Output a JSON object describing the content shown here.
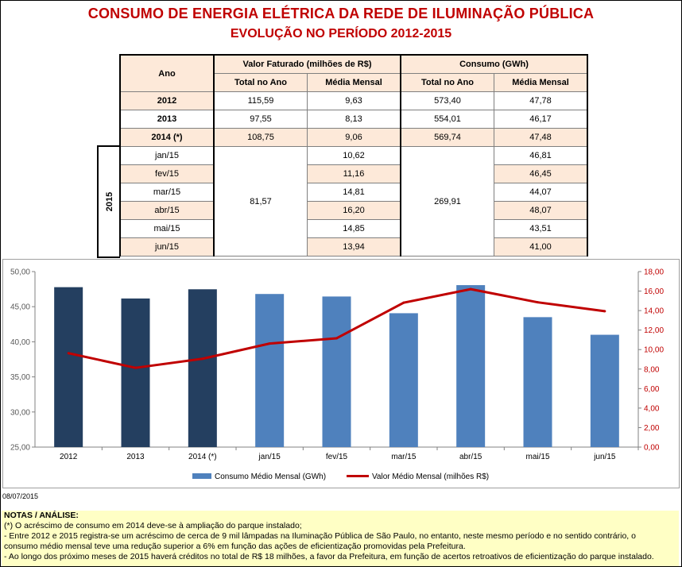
{
  "title": "CONSUMO DE ENERGIA ELÉTRICA DA REDE DE ILUMINAÇÃO PÚBLICA",
  "subtitle": "EVOLUÇÃO NO PERÍODO 2012-2015",
  "table": {
    "col_ano": "Ano",
    "group_valor": "Valor Faturado (milhões de R$)",
    "group_consumo": "Consumo (GWh)",
    "sub_total": "Total no Ano",
    "sub_media": "Média Mensal",
    "side_label": "2015",
    "years": [
      {
        "label": "2012",
        "valor_total": "115,59",
        "valor_media": "9,63",
        "cons_total": "573,40",
        "cons_media": "47,78"
      },
      {
        "label": "2013",
        "valor_total": "97,55",
        "valor_media": "8,13",
        "cons_total": "554,01",
        "cons_media": "46,17"
      },
      {
        "label": "2014 (*)",
        "valor_total": "108,75",
        "valor_media": "9,06",
        "cons_total": "569,74",
        "cons_media": "47,48"
      }
    ],
    "months_valor_total": "81,57",
    "months_cons_total": "269,91",
    "months": [
      {
        "label": "jan/15",
        "valor_media": "10,62",
        "cons_media": "46,81"
      },
      {
        "label": "fev/15",
        "valor_media": "11,16",
        "cons_media": "46,45"
      },
      {
        "label": "mar/15",
        "valor_media": "14,81",
        "cons_media": "44,07"
      },
      {
        "label": "abr/15",
        "valor_media": "16,20",
        "cons_media": "48,07"
      },
      {
        "label": "mai/15",
        "valor_media": "14,85",
        "cons_media": "43,51"
      },
      {
        "label": "jun/15",
        "valor_media": "13,94",
        "cons_media": "41,00"
      }
    ]
  },
  "chart_data": {
    "type": "bar",
    "categories": [
      "2012",
      "2013",
      "2014 (*)",
      "jan/15",
      "fev/15",
      "mar/15",
      "abr/15",
      "mai/15",
      "jun/15"
    ],
    "series": [
      {
        "name": "Consumo Médio Mensal (GWh)",
        "type": "bar",
        "axis": "left",
        "values": [
          47.78,
          46.17,
          47.48,
          46.81,
          46.45,
          44.07,
          48.07,
          43.51,
          41.0
        ],
        "colors": [
          "#243f60",
          "#243f60",
          "#243f60",
          "#4f81bd",
          "#4f81bd",
          "#4f81bd",
          "#4f81bd",
          "#4f81bd",
          "#4f81bd"
        ]
      },
      {
        "name": "Valor Médio Mensal (milhões R$)",
        "type": "line",
        "axis": "right",
        "values": [
          9.63,
          8.13,
          9.06,
          10.62,
          11.16,
          14.81,
          16.2,
          14.85,
          13.94
        ],
        "color": "#c00000"
      }
    ],
    "ylim_left": [
      25,
      50
    ],
    "left_ticks": [
      "25,00",
      "30,00",
      "35,00",
      "40,00",
      "45,00",
      "50,00"
    ],
    "ylim_right": [
      0,
      18
    ],
    "right_ticks": [
      "0,00",
      "2,00",
      "4,00",
      "6,00",
      "8,00",
      "10,00",
      "12,00",
      "14,00",
      "16,00",
      "18,00"
    ],
    "legend_placement": "bottom",
    "grid": false
  },
  "date": "08/07/2015",
  "notes": {
    "heading": "NOTAS / ANÁLISE:",
    "lines": [
      "(*)  O acréscimo de consumo em 2014 deve-se à ampliação do parque instalado;",
      "- Entre 2012 e 2015 registra-se um acréscimo de cerca de 9 mil lâmpadas na Iluminação Pública de São Paulo, no entanto, neste mesmo período e no sentido contrário, o",
      "consumo médio mensal teve uma redução superior a 6% em função das ações de eficientização promovidas pela Prefeitura.",
      "- Ao longo dos próximo meses de 2015 haverá créditos no total de R$ 18 milhões, a favor da Prefeitura, em função de acertos retroativos de eficientização do parque instalado."
    ]
  },
  "colors": {
    "title": "#c00000",
    "header_fill": "#fde9d9",
    "bar_dark": "#243f60",
    "bar_light": "#4f81bd",
    "line": "#c00000",
    "notes_bg": "#ffffc5"
  }
}
